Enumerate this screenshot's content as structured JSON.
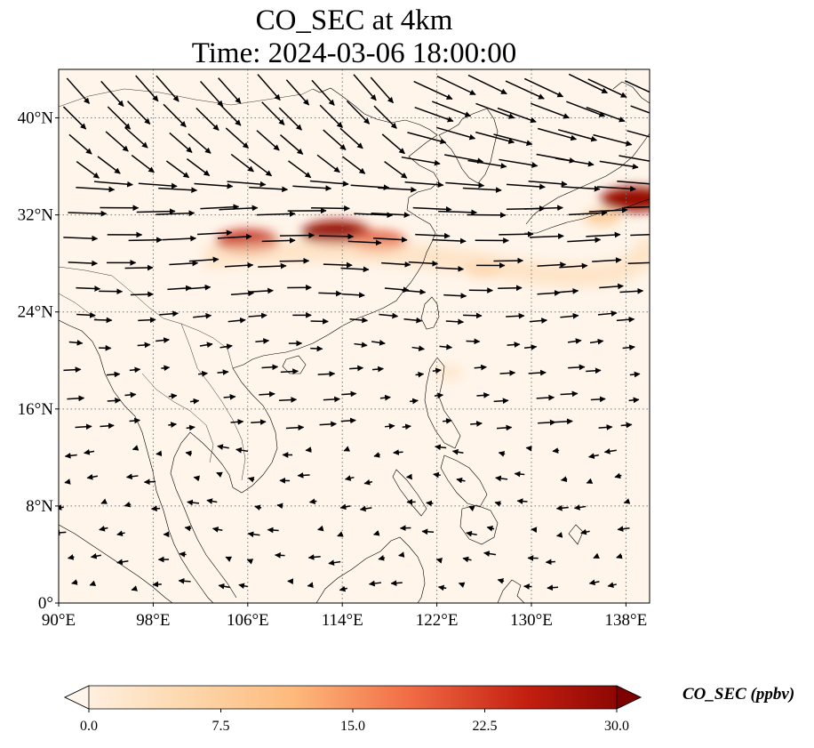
{
  "title_line1": "CO_SEC at 4km",
  "title_line2": "Time: 2024-03-06 18:00:00",
  "map": {
    "lon_range": [
      90,
      140
    ],
    "lat_range": [
      0,
      44
    ],
    "lon_ticks": [
      {
        "value": 90,
        "label": "90°E"
      },
      {
        "value": 98,
        "label": "98°E"
      },
      {
        "value": 106,
        "label": "106°E"
      },
      {
        "value": 114,
        "label": "114°E"
      },
      {
        "value": 122,
        "label": "122°E"
      },
      {
        "value": 130,
        "label": "130°E"
      },
      {
        "value": 138,
        "label": "138°E"
      }
    ],
    "lat_ticks": [
      {
        "value": 0,
        "label": "0°"
      },
      {
        "value": 8,
        "label": "8°N"
      },
      {
        "value": 16,
        "label": "16°N"
      },
      {
        "value": 24,
        "label": "24°N"
      },
      {
        "value": 32,
        "label": "32°N"
      },
      {
        "value": 40,
        "label": "40°N"
      }
    ],
    "gridlines": true,
    "background_color": "#fff5ea",
    "plumes": [
      {
        "lon": 106.0,
        "lat": 29.8,
        "value": 24
      },
      {
        "lon": 113.5,
        "lat": 30.5,
        "value": 28
      },
      {
        "lon": 117.0,
        "lat": 29.8,
        "value": 20
      },
      {
        "lon": 126.0,
        "lat": 27.5,
        "value": 8
      },
      {
        "lon": 138.8,
        "lat": 33.3,
        "value": 28
      },
      {
        "lon": 136.0,
        "lat": 31.8,
        "value": 8
      },
      {
        "lon": 123.0,
        "lat": 19.0,
        "value": 3
      }
    ]
  },
  "colorbar": {
    "min": 0.0,
    "max": 30.0,
    "ticks": [
      "0.0",
      "7.5",
      "15.0",
      "22.5",
      "30.0"
    ],
    "label": "CO_SEC (ppbv)",
    "colormap": [
      "#fff5eb",
      "#fdd9b0",
      "#fdb97a",
      "#f16b45",
      "#c41f10",
      "#7f0000"
    ],
    "extend": "both"
  }
}
